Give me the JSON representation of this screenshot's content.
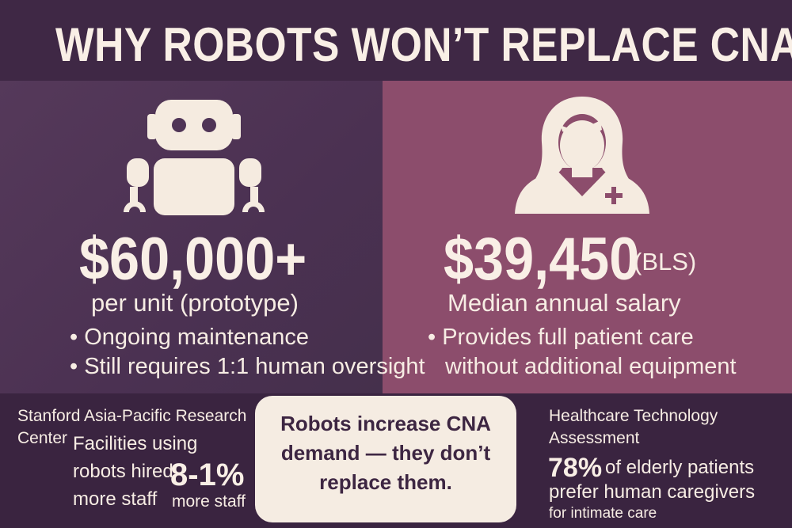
{
  "title": "WHY ROBOTS WON’T REPLACE CNAs",
  "colors": {
    "background": "#3d2642",
    "left_panel": "#4f3456",
    "right_panel": "#8c4d6c",
    "text": "#f7ede4",
    "callout_bg": "#f5ece2",
    "callout_text": "#3d2642"
  },
  "robot": {
    "icon": "robot-icon",
    "cost": "$60,000+",
    "cost_note": "per unit (prototype)",
    "bullets": [
      "• Ongoing maintenance",
      "• Still requires 1:1 human oversight"
    ]
  },
  "cna": {
    "icon": "nurse-icon",
    "salary": "$39,450",
    "salary_source": "(BLS)",
    "salary_note": "Median annual salary",
    "bullet_line1": "• Provides full patient care",
    "bullet_line2": "without additional equipment"
  },
  "bottom_left": {
    "source_line1": "Stanford Asia-Pacific Research",
    "source_line2": "Center",
    "text_line1": "Facilities using",
    "text_line2": "robots hired",
    "text_line3": "more staff",
    "stat": "8-1%",
    "stat_note": "more staff"
  },
  "callout": {
    "line1": "Robots increase CNA",
    "line2": "demand — they don’t",
    "line3": "replace them."
  },
  "bottom_right": {
    "source_line1": "Healthcare Technology",
    "source_line2": "Assessment",
    "stat": "78%",
    "stat_text": "of elderly patients",
    "text_line2": "prefer human caregivers",
    "text_line3": "for intimate care"
  }
}
